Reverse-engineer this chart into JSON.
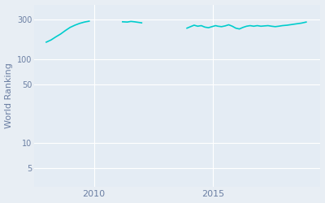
{
  "ylabel": "World Ranking",
  "line_color": "#00CDCD",
  "background_color": "#E8EEF4",
  "axes_background": "#E4ECF4",
  "grid_color": "#FFFFFF",
  "tick_color": "#6B7FA3",
  "label_color": "#6B7FA3",
  "yticks": [
    5,
    10,
    50,
    100,
    300
  ],
  "ytick_labels": [
    "5",
    "10",
    "50",
    "100",
    "300"
  ],
  "xticks": [
    2010,
    2015
  ],
  "xlim": [
    2007.5,
    2019.5
  ],
  "ylim_log": [
    3,
    450
  ],
  "segment1_x": [
    2008.0,
    2008.2,
    2008.4,
    2008.6,
    2008.8,
    2009.0,
    2009.2,
    2009.4,
    2009.6,
    2009.8
  ],
  "segment1_y": [
    160,
    170,
    185,
    200,
    220,
    240,
    255,
    268,
    278,
    285
  ],
  "segment2_x": [
    2011.2,
    2011.4,
    2011.55,
    2011.7,
    2011.85,
    2012.0
  ],
  "segment2_y": [
    280,
    278,
    283,
    280,
    276,
    272
  ],
  "segment3_x": [
    2013.9,
    2014.05,
    2014.2,
    2014.35,
    2014.5,
    2014.65,
    2014.8,
    2014.95,
    2015.1,
    2015.2,
    2015.35,
    2015.5,
    2015.65,
    2015.8,
    2015.95,
    2016.1,
    2016.25,
    2016.4,
    2016.55,
    2016.7,
    2016.85,
    2017.0,
    2017.15,
    2017.3,
    2017.45,
    2017.6,
    2017.75,
    2017.9,
    2018.1,
    2018.3,
    2018.5,
    2018.7,
    2018.9
  ],
  "segment3_y": [
    235,
    245,
    255,
    248,
    252,
    242,
    238,
    245,
    252,
    248,
    245,
    250,
    258,
    248,
    235,
    230,
    240,
    248,
    252,
    248,
    252,
    248,
    250,
    252,
    248,
    245,
    248,
    252,
    255,
    260,
    265,
    270,
    278
  ]
}
